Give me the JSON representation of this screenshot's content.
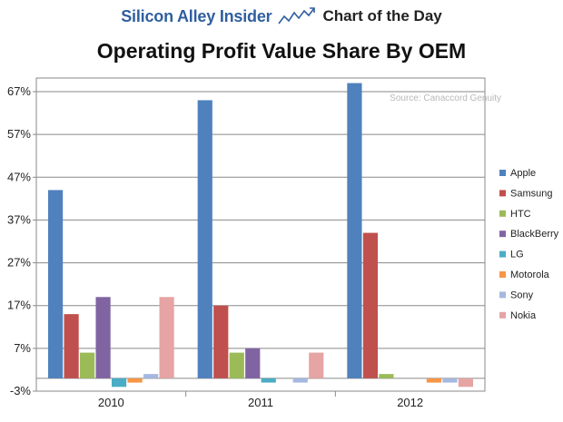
{
  "banner": {
    "brand": "Silicon Alley Insider",
    "label": "Chart of the Day"
  },
  "colors": {
    "brand": "#2f5f9e",
    "grid": "#8a8a8a",
    "axis": "#8a8a8a"
  },
  "chart_data": {
    "type": "bar",
    "title": "Operating Profit Value Share By OEM",
    "source": "Source: Canaccord Genuity",
    "xlabel": "",
    "ylabel": "",
    "ylim": [
      -3,
      70
    ],
    "yticks": [
      -3,
      7,
      17,
      27,
      37,
      47,
      57,
      67
    ],
    "ytick_labels": [
      "-3%",
      "7%",
      "17%",
      "27%",
      "37%",
      "47%",
      "57%",
      "67%"
    ],
    "grid": true,
    "legend_position": "right",
    "categories": [
      "2010",
      "2011",
      "2012"
    ],
    "series": [
      {
        "name": "Apple",
        "color": "#4f81bd",
        "values": [
          44,
          65,
          69
        ]
      },
      {
        "name": "Samsung",
        "color": "#c0504d",
        "values": [
          15,
          17,
          34
        ]
      },
      {
        "name": "HTC",
        "color": "#9bbb59",
        "values": [
          6,
          6,
          1
        ]
      },
      {
        "name": "BlackBerry",
        "color": "#8064a2",
        "values": [
          19,
          7,
          0
        ]
      },
      {
        "name": "LG",
        "color": "#4bacc6",
        "values": [
          -2,
          -1,
          0
        ]
      },
      {
        "name": "Motorola",
        "color": "#f79646",
        "values": [
          -1,
          0,
          -1
        ]
      },
      {
        "name": "Sony",
        "color": "#a5b8e0",
        "values": [
          1,
          -1,
          -1
        ]
      },
      {
        "name": "Nokia",
        "color": "#e6a4a4",
        "values": [
          19,
          6,
          -2
        ]
      }
    ]
  }
}
